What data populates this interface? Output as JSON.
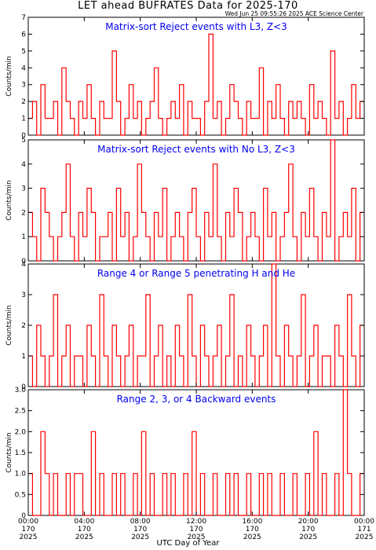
{
  "page": {
    "title": "LET ahead BUFRATES Data for 2025-170",
    "stamp": "Wed Jun 25 09:55:26 2025 ACE Science Center",
    "xlabel": "UTC Day of Year"
  },
  "colors": {
    "series": "#ff0000",
    "panel_title": "#0000ee",
    "axes": "#000000",
    "background": "#ffffff"
  },
  "chart_data": [
    {
      "type": "line",
      "title": "Matrix-sort Reject events with L3, Z<3",
      "ylabel": "Counts/min",
      "ylim": [
        0,
        7
      ],
      "yticks": [
        "0",
        "1",
        "2",
        "3",
        "4",
        "5",
        "6",
        "7"
      ],
      "xlim": [
        0,
        24
      ],
      "xticks": [
        "00:00\n170\n2025",
        "04:00\n170\n2025",
        "08:00\n170\n2025",
        "12:00\n170\n2025",
        "16:00\n170\n2025",
        "20:00\n170\n2025",
        "00:00\n171\n2025"
      ],
      "series": [
        {
          "values": [
            1,
            2,
            0,
            3,
            1,
            1,
            2,
            0,
            4,
            2,
            1,
            0,
            2,
            1,
            3,
            1,
            0,
            2,
            1,
            1,
            5,
            2,
            0,
            1,
            3,
            1,
            2,
            0,
            1,
            2,
            4,
            1,
            0,
            1,
            2,
            1,
            3,
            0,
            2,
            1,
            1,
            0,
            2,
            6,
            1,
            2,
            0,
            1,
            3,
            2,
            1,
            0,
            2,
            1,
            1,
            4,
            0,
            2,
            1,
            3,
            1,
            0,
            2,
            1,
            2,
            1,
            0,
            3,
            1,
            2,
            1,
            0,
            5,
            1,
            2,
            0,
            1,
            3,
            1,
            2
          ]
        }
      ]
    },
    {
      "type": "line",
      "title": "Matrix-sort Reject events with No L3, Z<3",
      "ylabel": "Counts/min",
      "ylim": [
        0,
        5
      ],
      "yticks": [
        "0",
        "1",
        "2",
        "3",
        "4",
        "5"
      ],
      "xlim": [
        0,
        24
      ],
      "series": [
        {
          "values": [
            2,
            1,
            0,
            3,
            2,
            1,
            0,
            1,
            2,
            4,
            1,
            0,
            2,
            1,
            3,
            2,
            0,
            1,
            1,
            2,
            0,
            3,
            1,
            2,
            0,
            1,
            4,
            2,
            1,
            0,
            2,
            1,
            3,
            0,
            1,
            2,
            1,
            0,
            2,
            3,
            1,
            0,
            2,
            1,
            4,
            1,
            0,
            2,
            1,
            3,
            2,
            0,
            1,
            2,
            1,
            0,
            3,
            1,
            2,
            0,
            1,
            2,
            4,
            1,
            0,
            2,
            1,
            3,
            1,
            0,
            2,
            1,
            5,
            0,
            1,
            2,
            1,
            3,
            0,
            2
          ]
        }
      ]
    },
    {
      "type": "line",
      "title": "Range 4 or Range 5 penetrating H and He",
      "ylabel": "Counts/min",
      "ylim": [
        0,
        4
      ],
      "yticks": [
        "0",
        "1",
        "2",
        "3",
        "4"
      ],
      "xlim": [
        0,
        24
      ],
      "series": [
        {
          "values": [
            1,
            0,
            2,
            1,
            0,
            1,
            3,
            0,
            1,
            2,
            0,
            1,
            1,
            0,
            2,
            1,
            0,
            3,
            1,
            0,
            2,
            1,
            0,
            1,
            2,
            0,
            1,
            1,
            3,
            0,
            1,
            2,
            0,
            1,
            0,
            2,
            1,
            0,
            3,
            1,
            0,
            2,
            1,
            0,
            1,
            2,
            0,
            1,
            3,
            0,
            1,
            0,
            2,
            1,
            0,
            1,
            2,
            0,
            4,
            1,
            0,
            2,
            1,
            0,
            1,
            3,
            0,
            1,
            2,
            0,
            1,
            1,
            0,
            2,
            1,
            0,
            3,
            1,
            0,
            2
          ]
        }
      ]
    },
    {
      "type": "line",
      "title": "Range 2, 3, or 4 Backward events",
      "ylabel": "Counts/min",
      "ylim": [
        0,
        3
      ],
      "yticks": [
        "0",
        "0.5",
        "1.0",
        "1.5",
        "2.0",
        "2.5",
        "3.0"
      ],
      "xlim": [
        0,
        24
      ],
      "series": [
        {
          "values": [
            1,
            0,
            0,
            2,
            1,
            0,
            1,
            0,
            0,
            1,
            0,
            1,
            1,
            0,
            0,
            2,
            0,
            1,
            0,
            0,
            1,
            0,
            1,
            0,
            0,
            1,
            0,
            2,
            0,
            1,
            0,
            0,
            1,
            0,
            1,
            0,
            0,
            1,
            0,
            2,
            0,
            1,
            0,
            0,
            1,
            0,
            0,
            1,
            0,
            1,
            0,
            0,
            1,
            0,
            0,
            1,
            0,
            1,
            0,
            0,
            1,
            0,
            0,
            1,
            0,
            0,
            1,
            0,
            2,
            0,
            1,
            0,
            0,
            1,
            0,
            3,
            1,
            0,
            0,
            1
          ]
        }
      ]
    }
  ]
}
